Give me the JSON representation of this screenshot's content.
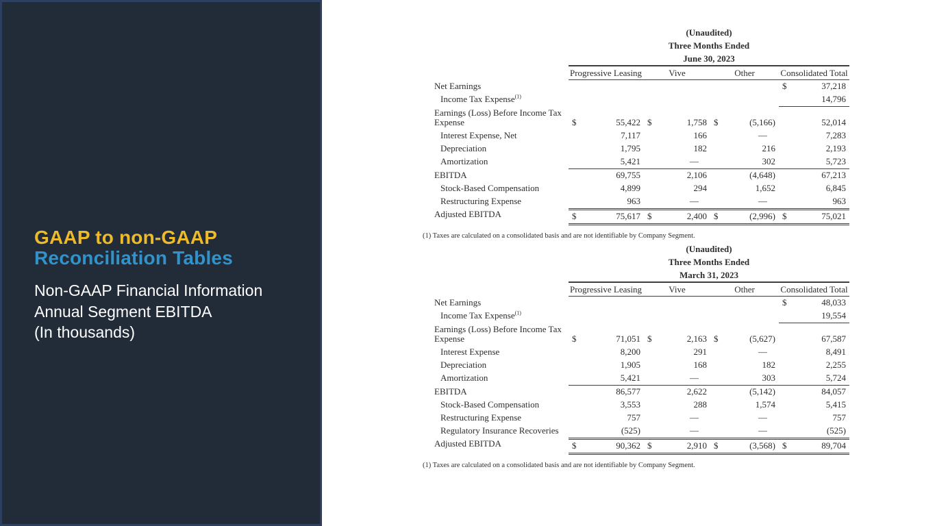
{
  "sidebar": {
    "title_line1": "GAAP to non-GAAP",
    "title_line2": "Reconciliation Tables",
    "subtitle_lines": [
      "Non-GAAP Financial Information",
      "Annual Segment EBITDA",
      "(In thousands)"
    ],
    "colors": {
      "title_line1": "#EDBB2A",
      "title_line2": "#3193CC",
      "background": "#222B38",
      "border": "#2E4061",
      "text": "#FFFFFF"
    }
  },
  "tables": [
    {
      "header": {
        "unaudited": "(Unaudited)",
        "period": "Three Months Ended",
        "date": "June 30, 2023"
      },
      "columns": [
        "Progressive Leasing",
        "Vive",
        "Other",
        "Consolidated Total"
      ],
      "rows": [
        {
          "label": "Net Earnings",
          "indent": 0,
          "cells": [
            [
              "",
              ""
            ],
            [
              "",
              ""
            ],
            [
              "",
              ""
            ],
            [
              "$",
              "37,218"
            ]
          ]
        },
        {
          "label": "Income Tax Expense",
          "sup": "(1)",
          "indent": 1,
          "total_rule": true,
          "cells": [
            [
              "",
              ""
            ],
            [
              "",
              ""
            ],
            [
              "",
              ""
            ],
            [
              "",
              "14,796"
            ]
          ]
        },
        {
          "label": "Earnings (Loss) Before Income Tax Expense",
          "indent": 0,
          "cells": [
            [
              "$",
              "55,422"
            ],
            [
              "$",
              "1,758"
            ],
            [
              "$",
              "(5,166)"
            ],
            [
              "",
              "52,014"
            ]
          ]
        },
        {
          "label": "Interest Expense, Net",
          "indent": 1,
          "cells": [
            [
              "",
              "7,117"
            ],
            [
              "",
              "166"
            ],
            [
              "",
              "—"
            ],
            [
              "",
              "7,283"
            ]
          ]
        },
        {
          "label": "Depreciation",
          "indent": 1,
          "cells": [
            [
              "",
              "1,795"
            ],
            [
              "",
              "182"
            ],
            [
              "",
              "216"
            ],
            [
              "",
              "2,193"
            ]
          ]
        },
        {
          "label": "Amortization",
          "indent": 1,
          "rule": "single",
          "cells": [
            [
              "",
              "5,421"
            ],
            [
              "",
              "—"
            ],
            [
              "",
              "302"
            ],
            [
              "",
              "5,723"
            ]
          ]
        },
        {
          "label": "EBITDA",
          "indent": 0,
          "cells": [
            [
              "",
              "69,755"
            ],
            [
              "",
              "2,106"
            ],
            [
              "",
              "(4,648)"
            ],
            [
              "",
              "67,213"
            ]
          ]
        },
        {
          "label": "Stock-Based Compensation",
          "indent": 1,
          "cells": [
            [
              "",
              "4,899"
            ],
            [
              "",
              "294"
            ],
            [
              "",
              "1,652"
            ],
            [
              "",
              "6,845"
            ]
          ]
        },
        {
          "label": "Restructuring Expense",
          "indent": 1,
          "cells": [
            [
              "",
              "963"
            ],
            [
              "",
              "—"
            ],
            [
              "",
              "—"
            ],
            [
              "",
              "963"
            ]
          ]
        },
        {
          "label": "Adjusted EBITDA",
          "indent": 0,
          "rule": "double",
          "cells": [
            [
              "$",
              "75,617"
            ],
            [
              "$",
              "2,400"
            ],
            [
              "$",
              "(2,996)"
            ],
            [
              "$",
              "75,021"
            ]
          ]
        }
      ],
      "footnote": "(1) Taxes are calculated on a consolidated basis and are not identifiable by Company Segment."
    },
    {
      "header": {
        "unaudited": "(Unaudited)",
        "period": "Three Months Ended",
        "date": "March 31, 2023"
      },
      "columns": [
        "Progressive Leasing",
        "Vive",
        "Other",
        "Consolidated Total"
      ],
      "rows": [
        {
          "label": "Net Earnings",
          "indent": 0,
          "cells": [
            [
              "",
              ""
            ],
            [
              "",
              ""
            ],
            [
              "",
              ""
            ],
            [
              "$",
              "48,033"
            ]
          ]
        },
        {
          "label": "Income Tax Expense",
          "sup": "(1)",
          "indent": 1,
          "total_rule": true,
          "cells": [
            [
              "",
              ""
            ],
            [
              "",
              ""
            ],
            [
              "",
              ""
            ],
            [
              "",
              "19,554"
            ]
          ]
        },
        {
          "label": "Earnings (Loss) Before Income Tax Expense",
          "indent": 0,
          "cells": [
            [
              "$",
              "71,051"
            ],
            [
              "$",
              "2,163"
            ],
            [
              "$",
              "(5,627)"
            ],
            [
              "",
              "67,587"
            ]
          ]
        },
        {
          "label": "Interest Expense",
          "indent": 1,
          "cells": [
            [
              "",
              "8,200"
            ],
            [
              "",
              "291"
            ],
            [
              "",
              "—"
            ],
            [
              "",
              "8,491"
            ]
          ]
        },
        {
          "label": "Depreciation",
          "indent": 1,
          "cells": [
            [
              "",
              "1,905"
            ],
            [
              "",
              "168"
            ],
            [
              "",
              "182"
            ],
            [
              "",
              "2,255"
            ]
          ]
        },
        {
          "label": "Amortization",
          "indent": 1,
          "rule": "single",
          "cells": [
            [
              "",
              "5,421"
            ],
            [
              "",
              "—"
            ],
            [
              "",
              "303"
            ],
            [
              "",
              "5,724"
            ]
          ]
        },
        {
          "label": "EBITDA",
          "indent": 0,
          "cells": [
            [
              "",
              "86,577"
            ],
            [
              "",
              "2,622"
            ],
            [
              "",
              "(5,142)"
            ],
            [
              "",
              "84,057"
            ]
          ]
        },
        {
          "label": "Stock-Based Compensation",
          "indent": 1,
          "cells": [
            [
              "",
              "3,553"
            ],
            [
              "",
              "288"
            ],
            [
              "",
              "1,574"
            ],
            [
              "",
              "5,415"
            ]
          ]
        },
        {
          "label": "Restructuring Expense",
          "indent": 1,
          "cells": [
            [
              "",
              "757"
            ],
            [
              "",
              "—"
            ],
            [
              "",
              "—"
            ],
            [
              "",
              "757"
            ]
          ]
        },
        {
          "label": "Regulatory Insurance Recoveries",
          "indent": 1,
          "cells": [
            [
              "",
              "(525)"
            ],
            [
              "",
              "—"
            ],
            [
              "",
              "—"
            ],
            [
              "",
              "(525)"
            ]
          ]
        },
        {
          "label": "Adjusted EBITDA",
          "indent": 0,
          "rule": "double",
          "cells": [
            [
              "$",
              "90,362"
            ],
            [
              "$",
              "2,910"
            ],
            [
              "$",
              "(3,568)"
            ],
            [
              "$",
              "89,704"
            ]
          ]
        }
      ],
      "footnote": "(1) Taxes are calculated on a consolidated basis and are not identifiable by Company Segment."
    }
  ]
}
